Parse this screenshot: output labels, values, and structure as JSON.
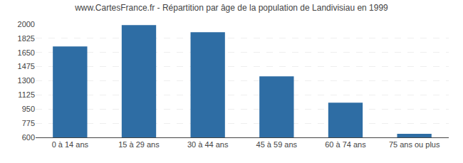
{
  "chart_data": {
    "type": "bar",
    "title": "www.CartesFrance.fr - Répartition par âge de la population de Landivisiau en 1999",
    "categories": [
      "0 à 14 ans",
      "15 à 29 ans",
      "30 à 44 ans",
      "45 à 59 ans",
      "60 à 74 ans",
      "75 ans ou plus"
    ],
    "values": [
      1725,
      1990,
      1900,
      1355,
      1030,
      645
    ],
    "color": "#2e6da4",
    "ylim": [
      600,
      2000
    ],
    "yticks": [
      600,
      775,
      950,
      1125,
      1300,
      1475,
      1650,
      1825,
      2000
    ],
    "grid": true
  }
}
